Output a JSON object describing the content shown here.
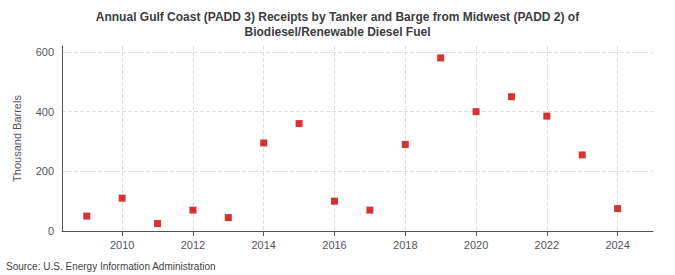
{
  "chart_data": {
    "type": "scatter",
    "title": "Annual Gulf Coast (PADD 3) Receipts by Tanker and Barge from Midwest (PADD 2) of\nBiodiesel/Renewable Diesel Fuel",
    "ylabel": "Thousand Barrels",
    "annotations": [
      "Source: U.S. Energy Information Administration"
    ],
    "x": [
      2009,
      2010,
      2011,
      2012,
      2013,
      2014,
      2015,
      2016,
      2017,
      2018,
      2019,
      2020,
      2021,
      2022,
      2023,
      2024
    ],
    "values": [
      50,
      110,
      25,
      70,
      45,
      295,
      360,
      100,
      70,
      290,
      580,
      400,
      450,
      385,
      255,
      75
    ],
    "color": "#cc0000",
    "marker": "square",
    "xlim": [
      2008.3,
      2025.0
    ],
    "xticks": [
      2010,
      2012,
      2014,
      2016,
      2018,
      2020,
      2022,
      2024
    ],
    "ylim": [
      0,
      620
    ],
    "yticks": [
      0,
      200,
      400,
      600
    ],
    "grid": true
  }
}
